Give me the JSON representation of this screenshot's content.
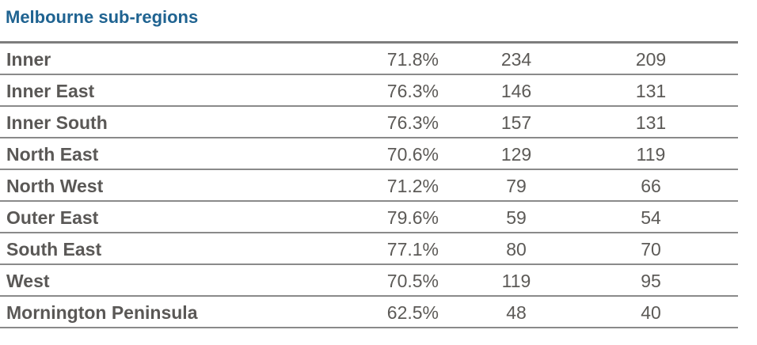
{
  "title": "Melbourne sub-regions",
  "rows": [
    {
      "name": "Inner",
      "pct": "71.8%",
      "n1": "234",
      "n2": "209"
    },
    {
      "name": "Inner East",
      "pct": "76.3%",
      "n1": "146",
      "n2": "131"
    },
    {
      "name": "Inner South",
      "pct": "76.3%",
      "n1": "157",
      "n2": "131"
    },
    {
      "name": "North East",
      "pct": "70.6%",
      "n1": "129",
      "n2": "119"
    },
    {
      "name": "North West",
      "pct": "71.2%",
      "n1": "79",
      "n2": "66"
    },
    {
      "name": "Outer East",
      "pct": "79.6%",
      "n1": "59",
      "n2": "54"
    },
    {
      "name": "South East",
      "pct": "77.1%",
      "n1": "80",
      "n2": "70"
    },
    {
      "name": "West",
      "pct": "70.5%",
      "n1": "119",
      "n2": "95"
    },
    {
      "name": "Mornington Peninsula",
      "pct": "62.5%",
      "n1": "48",
      "n2": "40"
    }
  ],
  "colors": {
    "title": "#1f6391",
    "text": "#5c5a57",
    "rule": "#8a8a8a"
  }
}
